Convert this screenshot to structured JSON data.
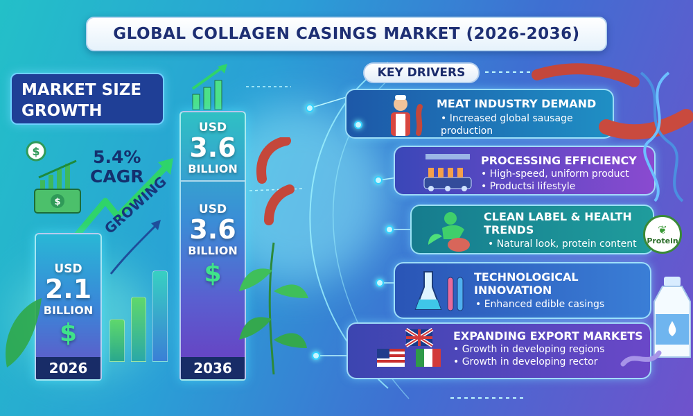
{
  "title": "GLOBAL COLLAGEN CASINGS MARKET (2026-2036)",
  "market_size_label": "MARKET SIZE GROWTH",
  "cagr_value": "5.4%",
  "cagr_label": "CAGR",
  "growing_label": "GROWING",
  "bar_2026": {
    "currency": "USD",
    "value": "2.1",
    "unit": "BILLION",
    "symbol": "$",
    "year": "2026"
  },
  "bar_2036": {
    "currency": "USD",
    "value": "3.6",
    "unit": "BILLION",
    "currency2": "USD",
    "value2": "3.6",
    "unit2": "BILLION",
    "symbol": "$",
    "year": "2036"
  },
  "key_drivers_label": "KEY DRIVERS",
  "drivers": [
    {
      "title": "MEAT INDUSTRY DEMAND",
      "bullets": [
        "• Increased global sausage production"
      ],
      "icon": "butcher-icon"
    },
    {
      "title": "PROCESSING EFFICIENCY",
      "bullets": [
        "• High-speed, uniform product",
        "• Productsi lifestyle"
      ],
      "icon": "factory-icon"
    },
    {
      "title": "CLEAN LABEL & HEALTH TRENDS",
      "bullets": [
        "• Natural look, protein content"
      ],
      "icon": "health-icon"
    },
    {
      "title": "TECHNOLOGICAL INNOVATION",
      "bullets": [
        "• Enhanced edible casings"
      ],
      "icon": "lab-flask-icon"
    },
    {
      "title": "EXPANDING EXPORT MARKETS",
      "bullets": [
        "• Growth in developing regions",
        "• Growth in developing rector"
      ],
      "icon": "flags-icon"
    }
  ],
  "protein_badge": "Protein",
  "colors": {
    "card1": "#1f7fbf",
    "card2": "#6b48c4",
    "card3": "#1d8a9a",
    "card4": "#2c64c8",
    "card5": "#5a44b8",
    "accent_green": "#2fd46a",
    "navy": "#1e2f73"
  }
}
